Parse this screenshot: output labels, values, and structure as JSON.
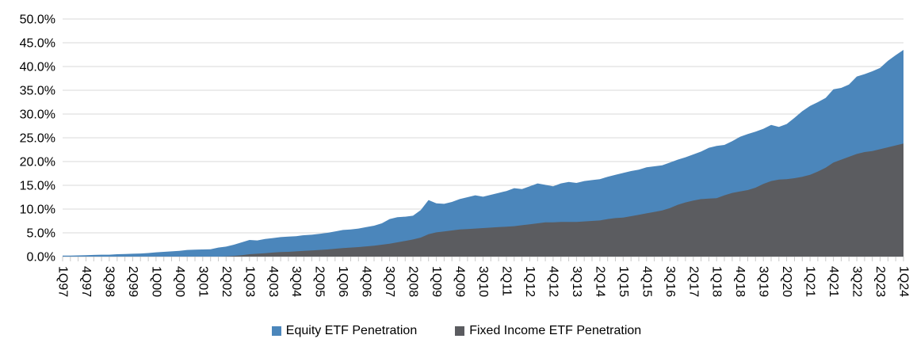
{
  "chart_data": {
    "type": "area",
    "mode": "overlay",
    "title": "",
    "xlabel": "",
    "ylabel": "",
    "ylim": [
      0,
      50
    ],
    "grid": true,
    "legend_position": "bottom",
    "y_ticks": [
      "0.0%",
      "5.0%",
      "10.0%",
      "15.0%",
      "20.0%",
      "25.0%",
      "30.0%",
      "35.0%",
      "40.0%",
      "45.0%",
      "50.0%"
    ],
    "x_frequency": "quarterly",
    "x_range": [
      "1Q97",
      "1Q24"
    ],
    "x_tick_labels": [
      "1Q97",
      "4Q97",
      "3Q98",
      "2Q99",
      "1Q00",
      "4Q00",
      "3Q01",
      "2Q02",
      "1Q03",
      "4Q03",
      "3Q04",
      "2Q05",
      "1Q06",
      "4Q06",
      "3Q07",
      "2Q08",
      "1Q09",
      "4Q09",
      "3Q10",
      "2Q11",
      "1Q12",
      "4Q12",
      "3Q13",
      "2Q14",
      "1Q15",
      "4Q15",
      "3Q16",
      "2Q17",
      "1Q18",
      "4Q18",
      "3Q19",
      "2Q20",
      "1Q21",
      "4Q21",
      "3Q22",
      "2Q23",
      "1Q24"
    ],
    "x_tick_label_step": 3,
    "series": [
      {
        "name": "Equity ETF Penetration",
        "color": "#4b86bb",
        "values": [
          0.2,
          0.2,
          0.25,
          0.3,
          0.35,
          0.4,
          0.4,
          0.5,
          0.55,
          0.6,
          0.65,
          0.75,
          0.9,
          1.0,
          1.1,
          1.2,
          1.4,
          1.45,
          1.5,
          1.55,
          1.9,
          2.1,
          2.5,
          3.0,
          3.5,
          3.4,
          3.7,
          3.9,
          4.1,
          4.2,
          4.3,
          4.5,
          4.6,
          4.8,
          5.0,
          5.3,
          5.6,
          5.7,
          5.9,
          6.2,
          6.5,
          7.0,
          7.9,
          8.3,
          8.4,
          8.6,
          9.8,
          11.9,
          11.2,
          11.1,
          11.5,
          12.1,
          12.5,
          12.9,
          12.6,
          13.0,
          13.4,
          13.8,
          14.4,
          14.2,
          14.8,
          15.4,
          15.1,
          14.8,
          15.4,
          15.7,
          15.5,
          15.9,
          16.1,
          16.3,
          16.8,
          17.2,
          17.6,
          18.0,
          18.3,
          18.8,
          19.0,
          19.2,
          19.8,
          20.4,
          20.9,
          21.5,
          22.1,
          22.9,
          23.3,
          23.5,
          24.3,
          25.2,
          25.8,
          26.3,
          26.9,
          27.7,
          27.3,
          27.9,
          29.2,
          30.6,
          31.7,
          32.5,
          33.4,
          35.2,
          35.5,
          36.2,
          37.9,
          38.4,
          39.0,
          39.7,
          41.2,
          42.4,
          43.5
        ]
      },
      {
        "name": "Fixed Income ETF Penetration",
        "color": "#5b5c60",
        "values": [
          0,
          0,
          0,
          0,
          0,
          0,
          0,
          0,
          0,
          0,
          0,
          0,
          0,
          0,
          0,
          0,
          0,
          0,
          0,
          0,
          0,
          0.05,
          0.15,
          0.3,
          0.5,
          0.6,
          0.7,
          0.85,
          0.95,
          1.0,
          1.1,
          1.2,
          1.3,
          1.4,
          1.5,
          1.65,
          1.8,
          1.9,
          2.0,
          2.15,
          2.3,
          2.5,
          2.7,
          3.0,
          3.3,
          3.6,
          4.0,
          4.7,
          5.1,
          5.3,
          5.5,
          5.7,
          5.8,
          5.9,
          6.0,
          6.1,
          6.2,
          6.3,
          6.4,
          6.6,
          6.8,
          7.0,
          7.2,
          7.2,
          7.3,
          7.3,
          7.3,
          7.4,
          7.5,
          7.6,
          7.9,
          8.1,
          8.2,
          8.5,
          8.8,
          9.1,
          9.4,
          9.7,
          10.2,
          10.9,
          11.4,
          11.8,
          12.1,
          12.2,
          12.3,
          12.9,
          13.4,
          13.7,
          14.0,
          14.5,
          15.3,
          15.9,
          16.2,
          16.3,
          16.5,
          16.8,
          17.2,
          17.9,
          18.7,
          19.8,
          20.4,
          21.0,
          21.6,
          22.0,
          22.2,
          22.6,
          23.0,
          23.4,
          23.8
        ]
      }
    ],
    "colors": {
      "gridline": "#d9d9d9",
      "axis": "#c9c9c9",
      "text": "#000000",
      "background": "#ffffff"
    }
  }
}
